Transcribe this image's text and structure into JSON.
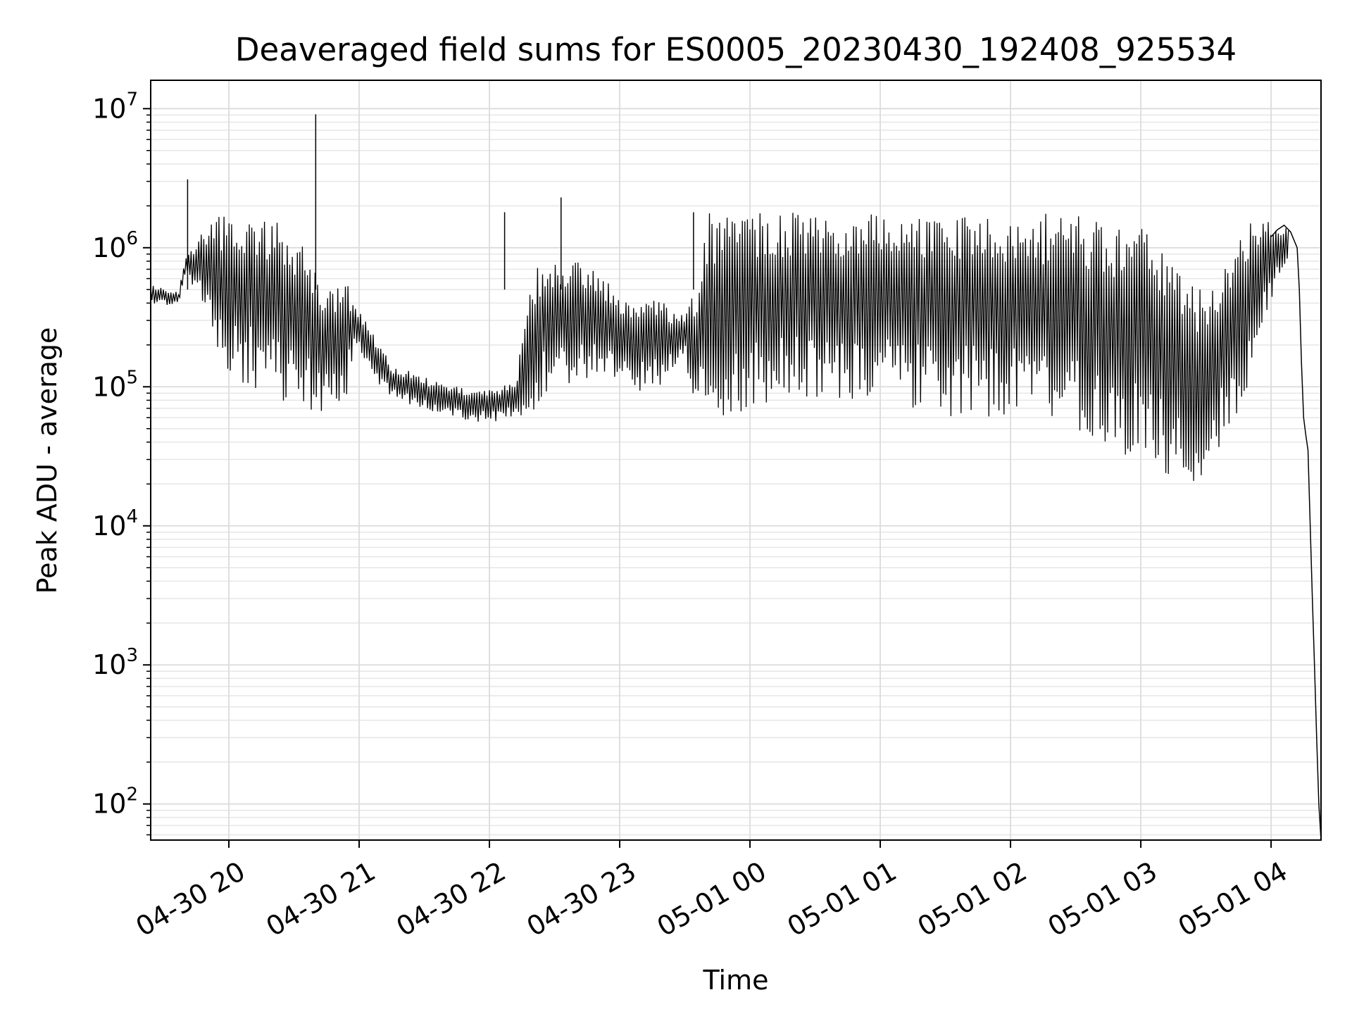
{
  "chart_data": {
    "type": "line",
    "title": "Deaveraged field sums for ES0005_20230430_192408_925534",
    "xlabel": "Time",
    "ylabel": "Peak ADU - average",
    "yscale": "log",
    "grid": true,
    "line_color": "#000000",
    "xlim": [
      "2023-04-30 19:24",
      "2023-05-01 04:23"
    ],
    "ylim": [
      55,
      16000000
    ],
    "x_ticks": [
      {
        "label": "04-30 20",
        "t": "2023-04-30 20:00"
      },
      {
        "label": "04-30 21",
        "t": "2023-04-30 21:00"
      },
      {
        "label": "04-30 22",
        "t": "2023-04-30 22:00"
      },
      {
        "label": "04-30 23",
        "t": "2023-04-30 23:00"
      },
      {
        "label": "05-01 00",
        "t": "2023-05-01 00:00"
      },
      {
        "label": "05-01 01",
        "t": "2023-05-01 01:00"
      },
      {
        "label": "05-01 02",
        "t": "2023-05-01 02:00"
      },
      {
        "label": "05-01 03",
        "t": "2023-05-01 03:00"
      },
      {
        "label": "05-01 04",
        "t": "2023-05-01 04:00"
      }
    ],
    "y_ticks": [
      {
        "base": "10",
        "exp": "2",
        "value": 100
      },
      {
        "base": "10",
        "exp": "3",
        "value": 1000
      },
      {
        "base": "10",
        "exp": "4",
        "value": 10000
      },
      {
        "base": "10",
        "exp": "5",
        "value": 100000
      },
      {
        "base": "10",
        "exp": "6",
        "value": 1000000
      },
      {
        "base": "10",
        "exp": "7",
        "value": 10000000
      }
    ],
    "series": [
      {
        "style": "envelope",
        "x": [
          "2023-04-30 19:24",
          "2023-04-30 19:31",
          "2023-04-30 19:37",
          "2023-04-30 19:40",
          "2023-04-30 19:44",
          "2023-04-30 19:48",
          "2023-04-30 19:52",
          "2023-04-30 19:56",
          "2023-04-30 20:00",
          "2023-04-30 20:08",
          "2023-04-30 20:16",
          "2023-04-30 20:24",
          "2023-04-30 20:32",
          "2023-04-30 20:40",
          "2023-04-30 20:48",
          "2023-04-30 20:54",
          "2023-04-30 20:58",
          "2023-04-30 21:05",
          "2023-04-30 21:15",
          "2023-04-30 21:25",
          "2023-04-30 21:35",
          "2023-04-30 21:45",
          "2023-04-30 21:55",
          "2023-04-30 22:05",
          "2023-04-30 22:12",
          "2023-04-30 22:20",
          "2023-04-30 22:30",
          "2023-04-30 22:40",
          "2023-04-30 22:50",
          "2023-04-30 23:00",
          "2023-04-30 23:10",
          "2023-04-30 23:20",
          "2023-04-30 23:30",
          "2023-04-30 23:35",
          "2023-04-30 23:40",
          "2023-04-30 23:50",
          "2023-05-01 00:00",
          "2023-05-01 00:15",
          "2023-05-01 00:30",
          "2023-05-01 00:45",
          "2023-05-01 01:00",
          "2023-05-01 01:15",
          "2023-05-01 01:30",
          "2023-05-01 01:45",
          "2023-05-01 02:00",
          "2023-05-01 02:15",
          "2023-05-01 02:30",
          "2023-05-01 02:40",
          "2023-05-01 02:50",
          "2023-05-01 03:00",
          "2023-05-01 03:08",
          "2023-05-01 03:16",
          "2023-05-01 03:24",
          "2023-05-01 03:30",
          "2023-05-01 03:40",
          "2023-05-01 03:50",
          "2023-05-01 04:00",
          "2023-05-01 04:05",
          "2023-05-01 04:08"
        ],
        "upper": [
          550000,
          500000,
          480000,
          900000,
          1100000,
          1300000,
          1500000,
          1700000,
          1800000,
          1900000,
          1800000,
          1500000,
          1200000,
          700000,
          500000,
          600000,
          400000,
          280000,
          140000,
          130000,
          110000,
          100000,
          95000,
          100000,
          110000,
          700000,
          800000,
          900000,
          700000,
          500000,
          450000,
          400000,
          350000,
          500000,
          1800000,
          1800000,
          1800000,
          1800000,
          1800000,
          1800000,
          1800000,
          1800000,
          1800000,
          1800000,
          1800000,
          1800000,
          1700000,
          1600000,
          1500000,
          1400000,
          1200000,
          1000000,
          600000,
          500000,
          1000000,
          1500000,
          1550000,
          1500000,
          1350000
        ],
        "lower": [
          400000,
          380000,
          400000,
          600000,
          500000,
          350000,
          250000,
          150000,
          120000,
          100000,
          90000,
          80000,
          70000,
          65000,
          70000,
          80000,
          200000,
          120000,
          80000,
          70000,
          65000,
          60000,
          55000,
          55000,
          60000,
          60000,
          120000,
          100000,
          110000,
          100000,
          90000,
          100000,
          150000,
          60000,
          55000,
          60000,
          70000,
          75000,
          80000,
          80000,
          75000,
          70000,
          60000,
          60000,
          60000,
          55000,
          45000,
          35000,
          30000,
          28000,
          25000,
          20000,
          18000,
          20000,
          40000,
          100000,
          400000,
          700000,
          800000
        ]
      },
      {
        "style": "line",
        "x": [
          "2023-05-01 04:00",
          "2023-05-01 04:03",
          "2023-05-01 04:06",
          "2023-05-01 04:09",
          "2023-05-01 04:12",
          "2023-05-01 04:13",
          "2023-05-01 04:14",
          "2023-05-01 04:15",
          "2023-05-01 04:16",
          "2023-05-01 04:17",
          "2023-05-01 04:19",
          "2023-05-01 04:20",
          "2023-05-01 04:21",
          "2023-05-01 04:22",
          "2023-05-01 04:23"
        ],
        "y": [
          1200000,
          1350000,
          1450000,
          1300000,
          1000000,
          500000,
          150000,
          60000,
          45000,
          35000,
          3000,
          1000,
          300,
          100,
          55
        ]
      }
    ],
    "spikes": [
      {
        "x": "2023-04-30 19:41",
        "y": 3100000
      },
      {
        "x": "2023-04-30 20:40",
        "y": 9100000
      },
      {
        "x": "2023-04-30 22:07",
        "y": 1800000
      },
      {
        "x": "2023-04-30 22:33",
        "y": 2300000
      },
      {
        "x": "2023-04-30 23:34",
        "y": 1800000
      }
    ]
  }
}
